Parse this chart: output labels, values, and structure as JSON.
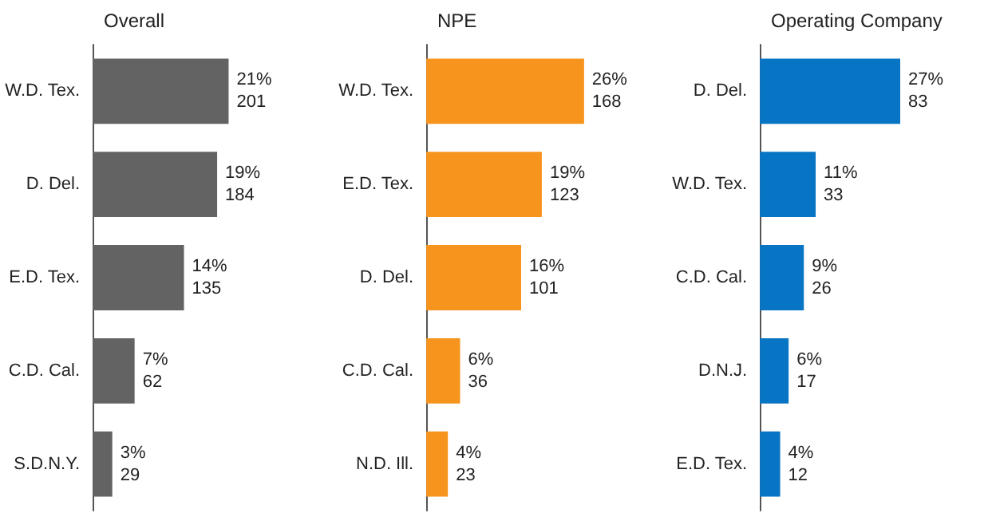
{
  "chart_data": [
    {
      "type": "bar",
      "orientation": "horizontal",
      "title": "Overall",
      "categories": [
        "W.D. Tex.",
        "D. Del.",
        "E.D. Tex.",
        "C.D. Cal.",
        "S.D.N.Y."
      ],
      "values": [
        201,
        184,
        135,
        62,
        29
      ],
      "color": "#636363",
      "value_labels": [
        "21%\n201",
        "19%\n184",
        "14%\n135",
        "7%\n62",
        "3%\n29"
      ]
    },
    {
      "type": "bar",
      "orientation": "horizontal",
      "title": "NPE",
      "categories": [
        "W.D. Tex.",
        "E.D. Tex.",
        "D. Del.",
        "C.D. Cal.",
        "N.D. Ill."
      ],
      "values": [
        168,
        123,
        101,
        36,
        23
      ],
      "color": "#f7941d",
      "value_labels": [
        "26%\n168",
        "19%\n123",
        "16%\n101",
        "6%\n36",
        "4%\n23"
      ]
    },
    {
      "type": "bar",
      "orientation": "horizontal",
      "title": "Operating Company",
      "categories": [
        "D. Del.",
        "W.D. Tex.",
        "C.D. Cal.",
        "D.N.J.",
        "E.D. Tex."
      ],
      "values": [
        83,
        33,
        26,
        17,
        12
      ],
      "color": "#0874c4",
      "value_labels": [
        "27%\n83",
        "11%\n33",
        "9%\n26",
        "6%\n17",
        "4%\n12"
      ]
    }
  ]
}
